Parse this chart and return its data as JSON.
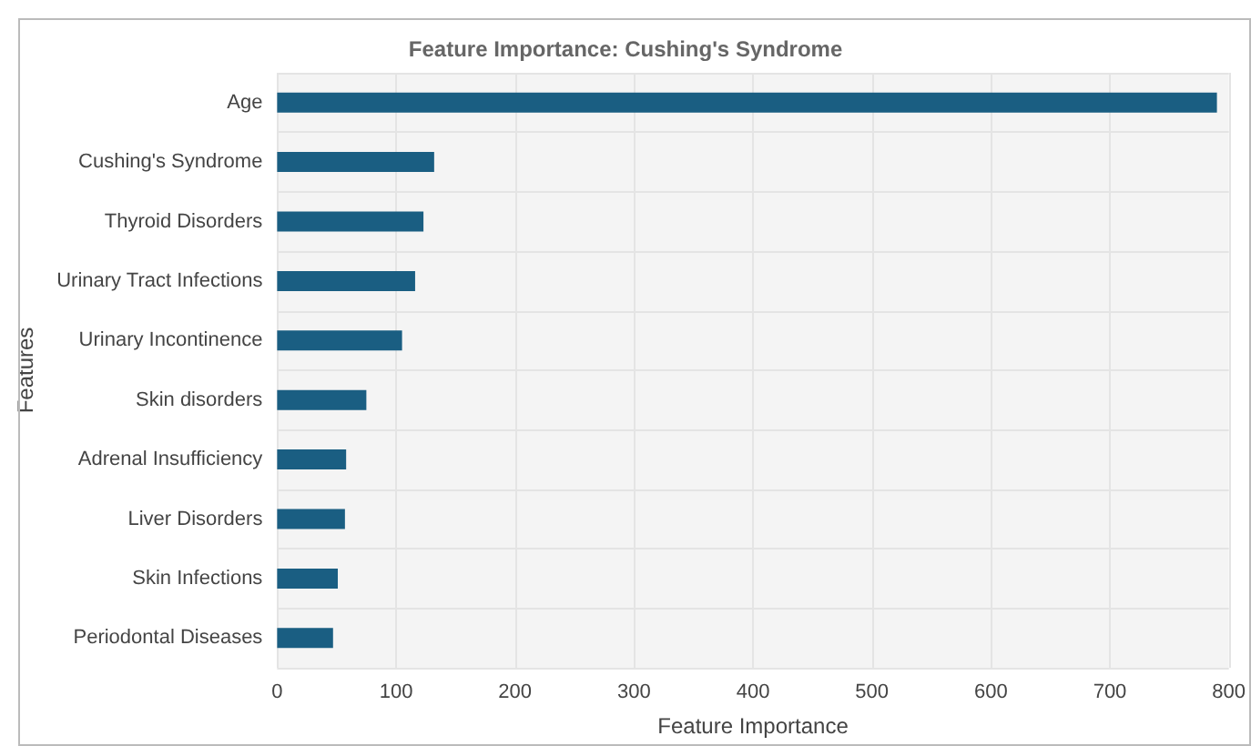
{
  "chart_data": {
    "type": "bar",
    "orientation": "horizontal",
    "title": "Feature Importance: Cushing's Syndrome",
    "xlabel": "Feature Importance",
    "ylabel": "Features",
    "categories": [
      "Age",
      "Cushing's Syndrome",
      "Thyroid Disorders",
      "Urinary Tract Infections",
      "Urinary Incontinence",
      "Skin disorders",
      "Adrenal Insufficiency",
      "Liver Disorders",
      "Skin Infections",
      "Periodontal Diseases"
    ],
    "values": [
      790,
      132,
      123,
      116,
      105,
      75,
      58,
      57,
      51,
      47
    ],
    "color": "#1a5e82",
    "xlim": [
      0,
      800
    ],
    "xticks": [
      0,
      100,
      200,
      300,
      400,
      500,
      600,
      700,
      800
    ],
    "grid": true
  }
}
